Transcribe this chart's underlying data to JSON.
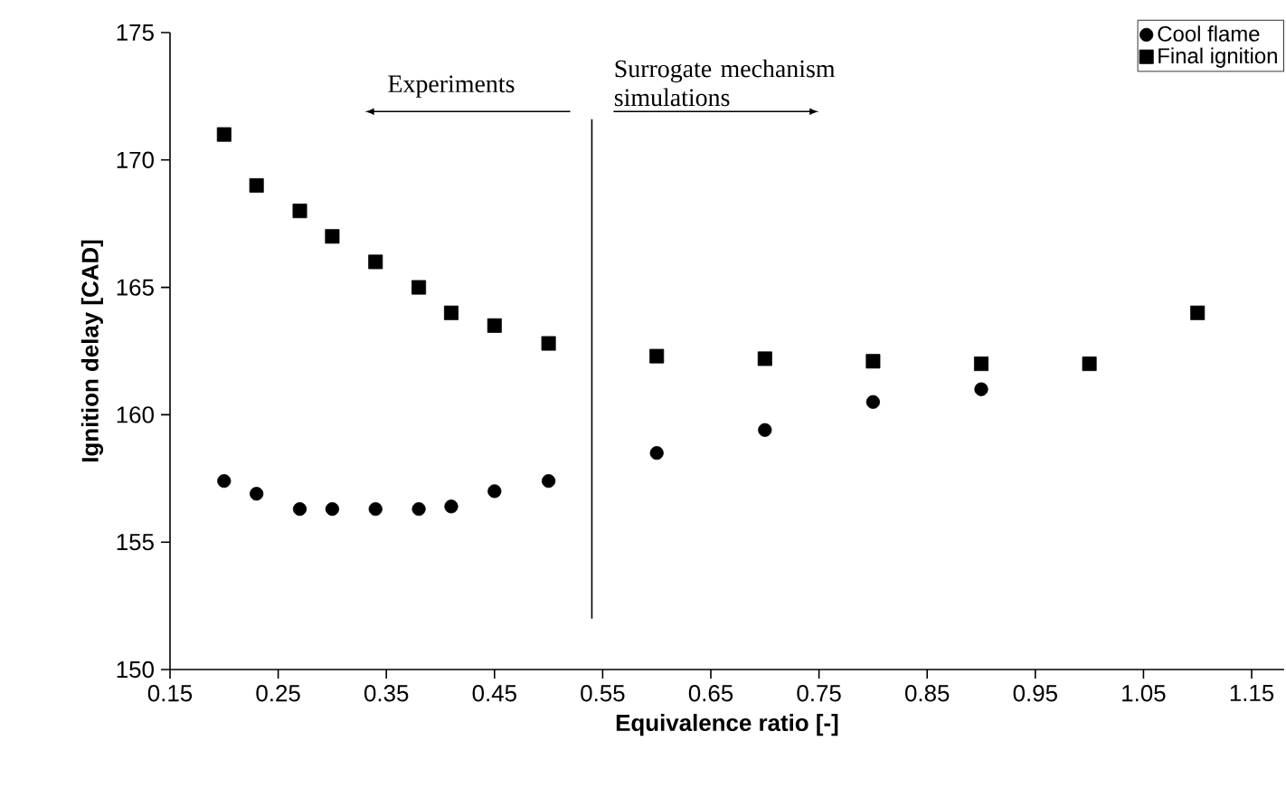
{
  "chart_data": {
    "type": "scatter",
    "xlabel": "Equivalence ratio [-]",
    "ylabel": "Ignition delay [CAD]",
    "xlim": [
      0.15,
      1.18
    ],
    "ylim": [
      150,
      175
    ],
    "xticks": [
      0.15,
      0.25,
      0.35,
      0.45,
      0.55,
      0.65,
      0.75,
      0.85,
      0.95,
      1.05,
      1.15
    ],
    "yticks": [
      150,
      155,
      160,
      165,
      170,
      175
    ],
    "legend": "top right",
    "grid": false,
    "series": [
      {
        "name": "Cool flame",
        "color": "#000000",
        "marker": "circle",
        "x": [
          0.2,
          0.23,
          0.27,
          0.3,
          0.34,
          0.38,
          0.41,
          0.45,
          0.5,
          0.6,
          0.7,
          0.8,
          0.9
        ],
        "values": [
          157.4,
          156.9,
          156.3,
          156.3,
          156.3,
          156.3,
          156.4,
          157.0,
          157.4,
          158.5,
          159.4,
          160.5,
          161.0
        ]
      },
      {
        "name": "Final ignition",
        "color": "#000000",
        "marker": "square",
        "x": [
          0.2,
          0.23,
          0.27,
          0.3,
          0.34,
          0.38,
          0.41,
          0.45,
          0.5,
          0.6,
          0.7,
          0.8,
          0.9,
          1.0,
          1.1
        ],
        "values": [
          171.0,
          169.0,
          168.0,
          167.0,
          166.0,
          165.0,
          164.0,
          163.5,
          162.8,
          162.3,
          162.2,
          162.1,
          162.0,
          162.0,
          164.0
        ]
      }
    ],
    "ref_lines": [
      {
        "axis": "x",
        "value": 0.54,
        "color": "#000000"
      }
    ],
    "annotations": [
      "Experiments",
      "Surrogate mechanism simulations"
    ]
  }
}
